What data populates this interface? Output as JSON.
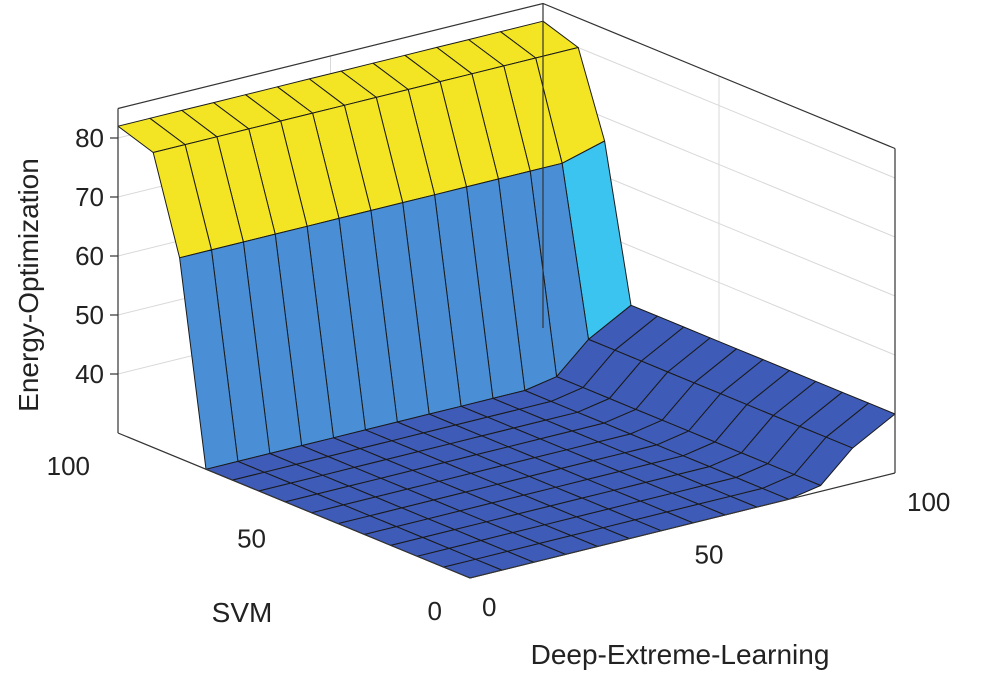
{
  "chart_data": {
    "type": "surface",
    "title": "",
    "zlabel": "Energy-Optimization",
    "xlabel": "Deep-Extreme-Learning",
    "ylabel": "SVM",
    "xlim": [
      0,
      100
    ],
    "ylim": [
      0,
      100
    ],
    "zlim": [
      30,
      85
    ],
    "xticks": [
      "0",
      "50",
      "100"
    ],
    "yticks": [
      "0",
      "50",
      "100"
    ],
    "zticks": [
      "40",
      "50",
      "60",
      "70",
      "80"
    ],
    "grid": true,
    "x": [
      0,
      7.5,
      15,
      22.5,
      30,
      37.5,
      45,
      52.5,
      60,
      67.5,
      75,
      82.5,
      90,
      100
    ],
    "y": [
      0,
      7.5,
      15,
      22.5,
      30,
      37.5,
      45,
      52.5,
      60,
      67.5,
      75,
      82.5,
      90,
      100
    ],
    "z": [
      [
        30,
        30,
        30,
        30,
        30,
        30,
        30,
        30,
        30,
        30,
        30,
        31,
        36,
        40
      ],
      [
        30,
        30,
        30,
        30,
        30,
        30,
        30,
        30,
        30,
        30,
        30,
        31,
        36,
        40
      ],
      [
        30,
        30,
        30,
        30,
        30,
        30,
        30,
        30,
        30,
        30,
        30,
        31,
        36,
        40
      ],
      [
        30,
        30,
        30,
        30,
        30,
        30,
        30,
        30,
        30,
        30,
        30,
        31,
        36,
        40
      ],
      [
        30,
        30,
        30,
        30,
        30,
        30,
        30,
        30,
        30,
        30,
        30,
        31,
        36,
        40
      ],
      [
        30,
        30,
        30,
        30,
        30,
        30,
        30,
        30,
        30,
        30,
        30,
        31,
        36,
        40
      ],
      [
        30,
        30,
        30,
        30,
        30,
        30,
        30,
        30,
        30,
        30,
        30,
        31,
        36,
        40
      ],
      [
        30,
        30,
        30,
        30,
        30,
        30,
        30,
        30,
        30,
        30,
        30,
        31,
        36,
        40
      ],
      [
        30,
        30,
        30,
        30,
        30,
        30,
        30,
        30,
        30,
        30,
        30,
        31,
        36,
        40
      ],
      [
        30,
        30,
        30,
        30,
        30,
        30,
        30,
        30,
        30,
        30,
        30,
        31,
        36,
        40
      ],
      [
        30,
        30,
        30,
        30,
        30,
        30,
        30,
        30,
        30,
        30,
        30,
        31,
        36,
        40
      ],
      [
        64,
        64,
        64,
        64,
        64,
        64,
        64,
        64,
        64,
        64,
        64,
        64,
        64,
        66
      ],
      [
        80,
        80,
        80,
        80,
        80,
        80,
        80,
        80,
        80,
        80,
        80,
        80,
        80,
        80
      ],
      [
        82,
        82,
        82,
        82,
        82,
        82,
        82,
        82,
        82,
        82,
        82,
        82,
        82,
        82
      ]
    ],
    "colormap": [
      "#3e5bb7",
      "#4a8fd6",
      "#3cc4f0",
      "#8ccd71",
      "#f3e523"
    ]
  }
}
